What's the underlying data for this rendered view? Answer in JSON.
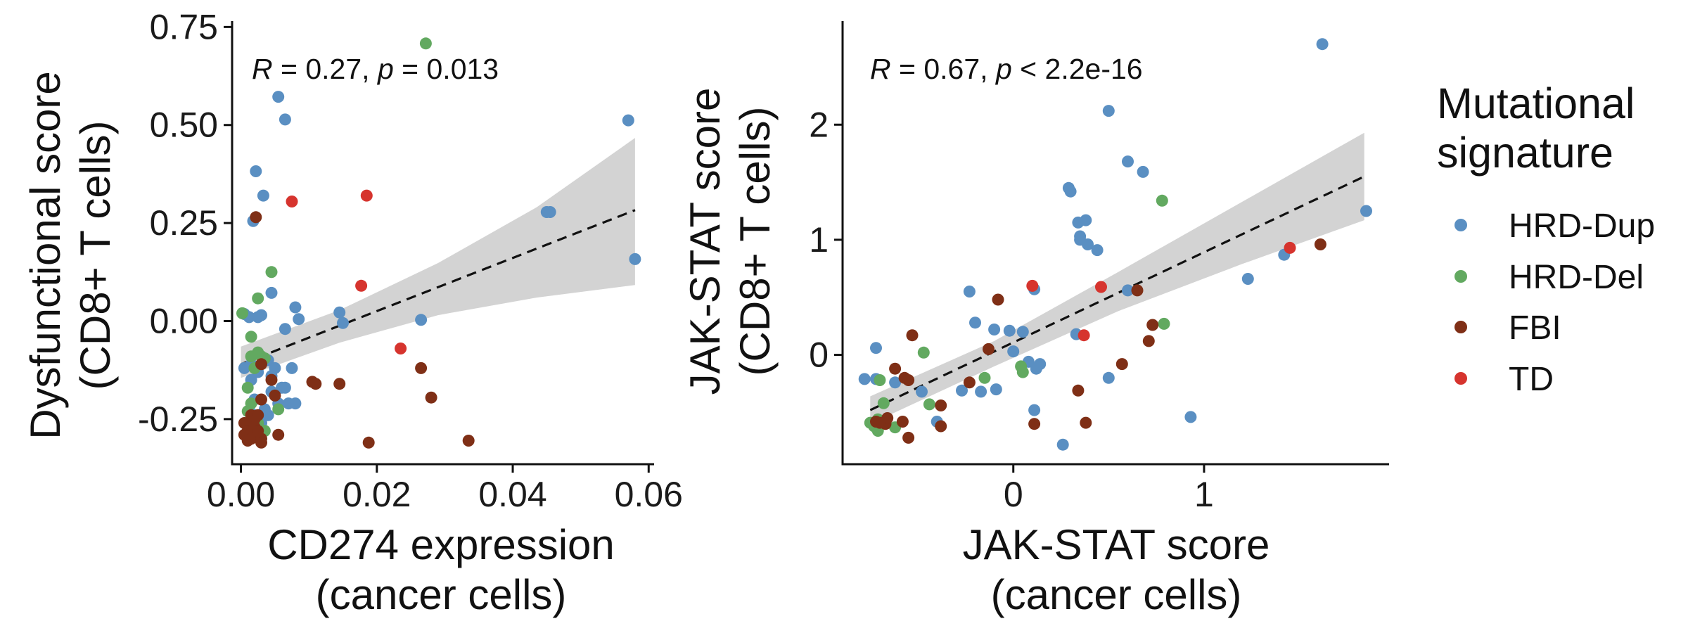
{
  "legend": {
    "title_lines": [
      "Mutational",
      "signature"
    ],
    "entries": [
      {
        "label": "HRD-Dup",
        "color": "#5a8fc2"
      },
      {
        "label": "HRD-Del",
        "color": "#62a960"
      },
      {
        "label": "FBI",
        "color": "#7f2f16"
      },
      {
        "label": "TD",
        "color": "#d6342e"
      }
    ]
  },
  "chart_data": [
    {
      "type": "scatter",
      "xlabel_lines": [
        "CD274 expression",
        "(cancer cells)"
      ],
      "ylabel_lines": [
        "Dysfunctional score",
        "(CD8+ T cells)"
      ],
      "xlim": [
        -0.0013,
        0.0608
      ],
      "ylim": [
        -0.365,
        0.765
      ],
      "xticks": [
        0,
        0.02,
        0.04,
        0.06
      ],
      "xtick_labels": [
        "0.00",
        "0.02",
        "0.04",
        "0.06"
      ],
      "yticks": [
        -0.25,
        0,
        0.25,
        0.5,
        0.75
      ],
      "ytick_labels": [
        "-0.25",
        "0.00",
        "0.25",
        "0.50",
        "0.75"
      ],
      "annotation": {
        "R": "0.27",
        "p_op": "=",
        "p": "0.013"
      },
      "fit": {
        "x": [
          0,
          0.058
        ],
        "y": [
          -0.11,
          0.283
        ],
        "band_x": [
          0,
          0.0145,
          0.029,
          0.0435,
          0.058
        ],
        "band_lower": [
          -0.145,
          -0.055,
          0.015,
          0.06,
          0.092
        ],
        "band_upper": [
          -0.065,
          0.028,
          0.148,
          0.29,
          0.467
        ]
      },
      "series": [
        {
          "name": "HRD-Dup",
          "color": "#5a8fc2",
          "points": [
            [
              0.0022,
              0.382
            ],
            [
              0.0055,
              0.572
            ],
            [
              0.0065,
              0.514
            ],
            [
              0.0033,
              0.32
            ],
            [
              0.0018,
              0.255
            ],
            [
              0.057,
              0.512
            ],
            [
              0.045,
              0.278
            ],
            [
              0.0455,
              0.278
            ],
            [
              0.058,
              0.158
            ],
            [
              0.0045,
              0.072
            ],
            [
              0.008,
              0.035
            ],
            [
              0.0085,
              0.005
            ],
            [
              0.0145,
              0.022
            ],
            [
              0.015,
              -0.005
            ],
            [
              0.0265,
              0.003
            ],
            [
              0.0065,
              -0.02
            ],
            [
              0.0005,
              0.018
            ],
            [
              0.0012,
              0.01
            ],
            [
              0.0025,
              0.01
            ],
            [
              0.003,
              0.015
            ],
            [
              0.0005,
              -0.12
            ],
            [
              0.0015,
              -0.11
            ],
            [
              0.0025,
              -0.13
            ],
            [
              0.004,
              -0.1
            ],
            [
              0.0045,
              -0.14
            ],
            [
              0.005,
              -0.12
            ],
            [
              0.006,
              -0.17
            ],
            [
              0.0075,
              -0.12
            ],
            [
              0.0015,
              -0.15
            ],
            [
              0.002,
              -0.2
            ],
            [
              0.004,
              -0.24
            ],
            [
              0.0055,
              -0.21
            ],
            [
              0.007,
              -0.21
            ],
            [
              0.008,
              -0.21
            ],
            [
              0.0025,
              -0.25
            ],
            [
              0.003,
              -0.26
            ],
            [
              0.0035,
              -0.225
            ],
            [
              0.0015,
              -0.235
            ],
            [
              0.0065,
              -0.17
            ],
            [
              0.0045,
              -0.18
            ]
          ]
        },
        {
          "name": "HRD-Del",
          "color": "#62a960",
          "points": [
            [
              0.0272,
              0.708
            ],
            [
              0.0045,
              0.125
            ],
            [
              0.0025,
              0.058
            ],
            [
              0.0002,
              0.02
            ],
            [
              0.0015,
              -0.04
            ],
            [
              0.0025,
              -0.08
            ],
            [
              0.003,
              -0.09
            ],
            [
              0.0015,
              -0.09
            ],
            [
              0.002,
              -0.12
            ],
            [
              0.001,
              -0.17
            ],
            [
              0.0015,
              -0.21
            ],
            [
              0.0025,
              -0.26
            ],
            [
              0.0035,
              -0.28
            ],
            [
              0.0055,
              -0.225
            ],
            [
              0.001,
              -0.23
            ],
            [
              0.0035,
              -0.095
            ]
          ]
        },
        {
          "name": "FBI",
          "color": "#7f2f16",
          "points": [
            [
              0.0022,
              0.265
            ],
            [
              0.003,
              -0.11
            ],
            [
              0.0045,
              -0.15
            ],
            [
              0.0105,
              -0.155
            ],
            [
              0.011,
              -0.16
            ],
            [
              0.0145,
              -0.16
            ],
            [
              0.0265,
              -0.12
            ],
            [
              0.028,
              -0.195
            ],
            [
              0.0188,
              -0.31
            ],
            [
              0.0335,
              -0.305
            ],
            [
              0.005,
              -0.19
            ],
            [
              0.003,
              -0.2
            ],
            [
              0.0015,
              -0.24
            ],
            [
              0.002,
              -0.25
            ],
            [
              0.0025,
              -0.24
            ],
            [
              0.0005,
              -0.26
            ],
            [
              0.001,
              -0.28
            ],
            [
              0.0005,
              -0.29
            ],
            [
              0.0015,
              -0.3
            ],
            [
              0.002,
              -0.27
            ],
            [
              0.0025,
              -0.28
            ],
            [
              0.003,
              -0.3
            ],
            [
              0.003,
              -0.31
            ],
            [
              0.0055,
              -0.29
            ],
            [
              0.001,
              -0.305
            ]
          ]
        },
        {
          "name": "TD",
          "color": "#d6342e",
          "points": [
            [
              0.0075,
              0.305
            ],
            [
              0.0185,
              0.32
            ],
            [
              0.0177,
              0.09
            ],
            [
              0.0235,
              -0.07
            ]
          ]
        }
      ]
    },
    {
      "type": "scatter",
      "xlabel_lines": [
        "JAK-STAT score",
        "(cancer cells)"
      ],
      "ylabel_lines": [
        "JAK-STAT score",
        "(CD8+ T cells)"
      ],
      "xlim": [
        -0.895,
        1.97
      ],
      "ylim": [
        -0.95,
        2.9
      ],
      "xticks": [
        0,
        1
      ],
      "xtick_labels": [
        "0",
        "1"
      ],
      "yticks": [
        0,
        1,
        2
      ],
      "ytick_labels": [
        "0",
        "1",
        "2"
      ],
      "annotation": {
        "R": "0.67",
        "p_op": "<",
        "p": "2.2e-16"
      },
      "fit": {
        "x": [
          -0.75,
          1.84
        ],
        "y": [
          -0.48,
          1.55
        ],
        "band_x": [
          -0.75,
          -0.1,
          0.55,
          1.2,
          1.84
        ],
        "band_lower": [
          -0.6,
          -0.1,
          0.38,
          0.79,
          1.17
        ],
        "band_upper": [
          -0.36,
          0.12,
          0.72,
          1.33,
          1.93
        ]
      },
      "series": [
        {
          "name": "HRD-Dup",
          "color": "#5a8fc2",
          "points": [
            [
              1.62,
              2.7
            ],
            [
              0.5,
              2.12
            ],
            [
              0.6,
              1.68
            ],
            [
              0.68,
              1.59
            ],
            [
              0.29,
              1.45
            ],
            [
              0.3,
              1.42
            ],
            [
              0.34,
              1.15
            ],
            [
              0.38,
              1.17
            ],
            [
              0.35,
              1.03
            ],
            [
              0.35,
              1.0
            ],
            [
              0.39,
              0.96
            ],
            [
              0.44,
              0.91
            ],
            [
              1.85,
              1.25
            ],
            [
              1.42,
              0.87
            ],
            [
              1.23,
              0.66
            ],
            [
              0.6,
              0.56
            ],
            [
              0.11,
              0.57
            ],
            [
              -0.23,
              0.55
            ],
            [
              -0.2,
              0.28
            ],
            [
              -0.1,
              0.22
            ],
            [
              -0.02,
              0.21
            ],
            [
              0.05,
              0.2
            ],
            [
              0.0,
              0.03
            ],
            [
              0.08,
              -0.06
            ],
            [
              0.12,
              -0.12
            ],
            [
              0.14,
              -0.08
            ],
            [
              0.33,
              0.18
            ],
            [
              -0.72,
              0.06
            ],
            [
              -0.78,
              -0.21
            ],
            [
              -0.72,
              -0.21
            ],
            [
              -0.62,
              -0.24
            ],
            [
              -0.48,
              -0.32
            ],
            [
              -0.27,
              -0.31
            ],
            [
              -0.17,
              -0.32
            ],
            [
              -0.09,
              -0.3
            ],
            [
              0.11,
              -0.48
            ],
            [
              -0.4,
              -0.58
            ],
            [
              0.93,
              -0.54
            ],
            [
              0.5,
              -0.2
            ],
            [
              0.26,
              -0.78
            ]
          ]
        },
        {
          "name": "HRD-Del",
          "color": "#62a960",
          "points": [
            [
              0.78,
              1.34
            ],
            [
              0.79,
              0.27
            ],
            [
              -0.47,
              0.02
            ],
            [
              -0.7,
              -0.22
            ],
            [
              0.04,
              -0.1
            ],
            [
              0.05,
              -0.15
            ],
            [
              -0.15,
              -0.2
            ],
            [
              -0.44,
              -0.43
            ],
            [
              -0.68,
              -0.42
            ],
            [
              -0.71,
              -0.56
            ],
            [
              -0.73,
              -0.62
            ],
            [
              -0.75,
              -0.59
            ],
            [
              -0.71,
              -0.66
            ],
            [
              -0.62,
              -0.63
            ]
          ]
        },
        {
          "name": "FBI",
          "color": "#7f2f16",
          "points": [
            [
              1.61,
              0.96
            ],
            [
              0.65,
              0.56
            ],
            [
              0.73,
              0.26
            ],
            [
              0.71,
              0.12
            ],
            [
              0.57,
              -0.08
            ],
            [
              0.34,
              -0.31
            ],
            [
              0.38,
              -0.59
            ],
            [
              0.11,
              -0.6
            ],
            [
              -0.08,
              0.48
            ],
            [
              -0.13,
              0.05
            ],
            [
              -0.53,
              0.17
            ],
            [
              -0.62,
              -0.12
            ],
            [
              -0.57,
              -0.2
            ],
            [
              -0.55,
              -0.22
            ],
            [
              -0.23,
              -0.24
            ],
            [
              -0.38,
              -0.44
            ],
            [
              -0.38,
              -0.62
            ],
            [
              -0.55,
              -0.72
            ],
            [
              -0.58,
              -0.58
            ],
            [
              -0.67,
              -0.6
            ],
            [
              -0.66,
              -0.55
            ],
            [
              -0.72,
              -0.58
            ],
            [
              -0.7,
              -0.59
            ]
          ]
        },
        {
          "name": "TD",
          "color": "#d6342e",
          "points": [
            [
              1.45,
              0.93
            ],
            [
              0.46,
              0.59
            ],
            [
              0.1,
              0.6
            ],
            [
              0.37,
              0.17
            ]
          ]
        }
      ]
    }
  ]
}
